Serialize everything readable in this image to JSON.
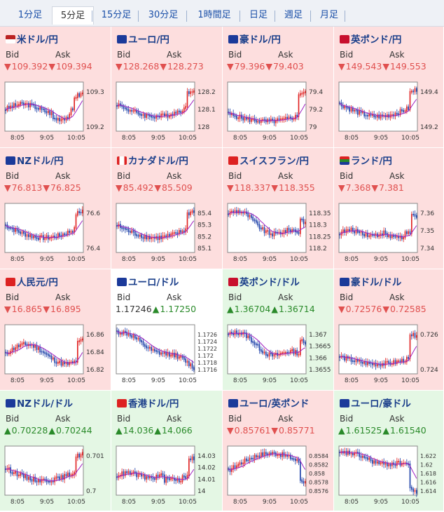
{
  "tabs": [
    {
      "label": "1分足",
      "active": false
    },
    {
      "label": "5分足",
      "active": true
    },
    {
      "label": "15分足",
      "active": false
    },
    {
      "label": "30分足",
      "active": false
    },
    {
      "label": "1時間足",
      "active": false
    },
    {
      "label": "日足",
      "active": false
    },
    {
      "label": "週足",
      "active": false
    },
    {
      "label": "月足",
      "active": false
    }
  ],
  "labels": {
    "bid": "Bid",
    "ask": "Ask"
  },
  "x_ticks": [
    "8:05",
    "9:05",
    "10:05"
  ],
  "colors": {
    "down_bg": "#fddede",
    "up_bg": "#e4f7e4",
    "down_text": "#e0504f",
    "up_text": "#2a8a2a",
    "candle_up": "#e02020",
    "candle_down": "#1a3ea8",
    "ma_line": "#a020c0"
  },
  "pairs": [
    {
      "name": "米ドル/円",
      "flag": "us-flag-icon",
      "dir": "down",
      "arrow": "▼",
      "bid": "109.392",
      "ask": "109.394",
      "y_ticks": [
        "109.3",
        "109.2"
      ],
      "trend": "spike"
    },
    {
      "name": "ユーロ/円",
      "flag": "eu-flag-icon",
      "dir": "down",
      "arrow": "▼",
      "bid": "128.268",
      "ask": "128.273",
      "y_ticks": [
        "128.2",
        "128.1",
        "128"
      ],
      "trend": "dip-spike"
    },
    {
      "name": "豪ドル/円",
      "flag": "au-flag-icon",
      "dir": "down",
      "arrow": "▼",
      "bid": "79.396",
      "ask": "79.403",
      "y_ticks": [
        "79.4",
        "79.2",
        "79"
      ],
      "trend": "low-spike"
    },
    {
      "name": "英ポンド/円",
      "flag": "gb-flag-icon",
      "dir": "down",
      "arrow": "▼",
      "bid": "149.543",
      "ask": "149.553",
      "y_ticks": [
        "149.4",
        "149.2"
      ],
      "trend": "dip-spike"
    },
    {
      "name": "NZドル/円",
      "flag": "nz-flag-icon",
      "dir": "down",
      "arrow": "▼",
      "bid": "76.813",
      "ask": "76.825",
      "y_ticks": [
        "76.6",
        "76.4"
      ],
      "trend": "dip-spike"
    },
    {
      "name": "カナダドル/円",
      "flag": "ca-flag-icon",
      "dir": "down",
      "arrow": "▼",
      "bid": "85.492",
      "ask": "85.509",
      "y_ticks": [
        "85.4",
        "85.3",
        "85.2",
        "85.1"
      ],
      "trend": "dip-spike"
    },
    {
      "name": "スイスフラン/円",
      "flag": "ch-flag-icon",
      "dir": "down",
      "arrow": "▼",
      "bid": "118.337",
      "ask": "118.355",
      "y_ticks": [
        "118.35",
        "118.3",
        "118.25",
        "118.2"
      ],
      "trend": "down-spike"
    },
    {
      "name": "ランド/円",
      "flag": "za-flag-icon",
      "dir": "down",
      "arrow": "▼",
      "bid": "7.368",
      "ask": "7.381",
      "y_ticks": [
        "7.36",
        "7.35",
        "7.34"
      ],
      "trend": "flat-spike"
    },
    {
      "name": "人民元/円",
      "flag": "cn-flag-icon",
      "dir": "down",
      "arrow": "▼",
      "bid": "16.865",
      "ask": "16.895",
      "y_ticks": [
        "16.86",
        "16.84",
        "16.82"
      ],
      "trend": "wave-spike"
    },
    {
      "name": "ユーロ/ドル",
      "flag": "eu-flag-icon",
      "dir": "flat",
      "arrow": "",
      "bid": "1.17246",
      "ask": "1.17250",
      "ask_arrow": "▲",
      "y_ticks": [
        "1.1726",
        "1.1724",
        "1.1722",
        "1.172",
        "1.1718",
        "1.1716"
      ],
      "trend": "down"
    },
    {
      "name": "英ポンド/ドル",
      "flag": "gb-flag-icon",
      "dir": "up",
      "arrow": "▲",
      "bid": "1.36704",
      "ask": "1.36714",
      "y_ticks": [
        "1.367",
        "1.3665",
        "1.366",
        "1.3655"
      ],
      "trend": "down-spike"
    },
    {
      "name": "豪ドル/ドル",
      "flag": "au-flag-icon",
      "dir": "down",
      "arrow": "▼",
      "bid": "0.72576",
      "ask": "0.72585",
      "y_ticks": [
        "0.726",
        "0.724"
      ],
      "trend": "low-spike"
    },
    {
      "name": "NZドル/ドル",
      "flag": "nz-flag-icon",
      "dir": "up",
      "arrow": "▲",
      "bid": "0.70228",
      "ask": "0.70244",
      "y_ticks": [
        "0.701",
        "0.7"
      ],
      "trend": "dip-spike"
    },
    {
      "name": "香港ドル/円",
      "flag": "hk-flag-icon",
      "dir": "up",
      "arrow": "▲",
      "bid": "14.036",
      "ask": "14.066",
      "y_ticks": [
        "14.03",
        "14.02",
        "14.01",
        "14"
      ],
      "trend": "flat-spike"
    },
    {
      "name": "ユーロ/英ポンド",
      "flag": "eu-flag-icon",
      "dir": "down",
      "arrow": "▼",
      "bid": "0.85761",
      "ask": "0.85771",
      "y_ticks": [
        "0.8584",
        "0.8582",
        "0.858",
        "0.8578",
        "0.8576"
      ],
      "trend": "hump"
    },
    {
      "name": "ユーロ/豪ドル",
      "flag": "eu-flag-icon",
      "dir": "up",
      "arrow": "▲",
      "bid": "1.61525",
      "ask": "1.61540",
      "y_ticks": [
        "1.622",
        "1.62",
        "1.618",
        "1.616",
        "1.614"
      ],
      "trend": "down-drop"
    }
  ]
}
